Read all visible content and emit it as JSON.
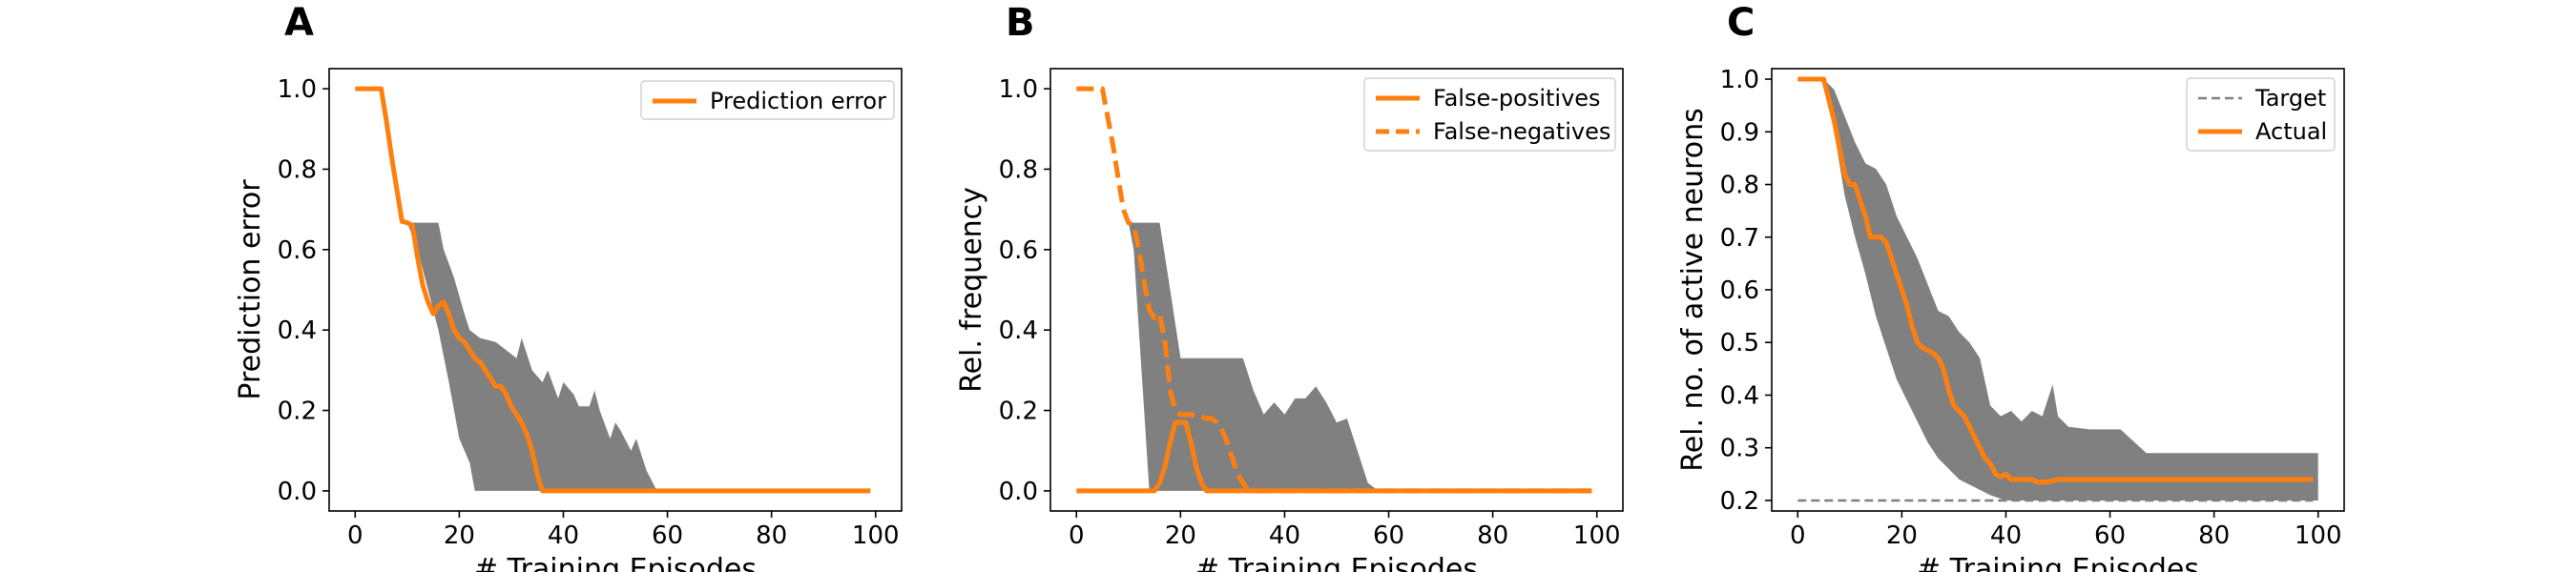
{
  "chart_data": [
    {
      "type": "line",
      "panel": "A",
      "xlabel": "# Training Episodes",
      "ylabel": "Prediction error",
      "xlim": [
        -5,
        105
      ],
      "ylim": [
        -0.05,
        1.05
      ],
      "xticks": [
        0,
        20,
        40,
        60,
        80,
        100
      ],
      "yticks": [
        0.0,
        0.2,
        0.4,
        0.6,
        0.8,
        1.0
      ],
      "yticklabels": [
        "0.0",
        "0.2",
        "0.4",
        "0.6",
        "0.8",
        "1.0"
      ],
      "legend_position": "top-right",
      "band_color": "#808080",
      "band": {
        "upper": [
          [
            0,
            1.0
          ],
          [
            5,
            1.0
          ],
          [
            10,
            0.667
          ],
          [
            13,
            0.667
          ],
          [
            16,
            0.667
          ],
          [
            17,
            0.6
          ],
          [
            19,
            0.53
          ],
          [
            21,
            0.44
          ],
          [
            22,
            0.4
          ],
          [
            24,
            0.38
          ],
          [
            27,
            0.37
          ],
          [
            29,
            0.35
          ],
          [
            31,
            0.33
          ],
          [
            32,
            0.38
          ],
          [
            34,
            0.3
          ],
          [
            36,
            0.27
          ],
          [
            37,
            0.3
          ],
          [
            39,
            0.23
          ],
          [
            40,
            0.27
          ],
          [
            42,
            0.24
          ],
          [
            43,
            0.21
          ],
          [
            45,
            0.21
          ],
          [
            46,
            0.25
          ],
          [
            47,
            0.2
          ],
          [
            49,
            0.13
          ],
          [
            50,
            0.17
          ],
          [
            51,
            0.15
          ],
          [
            53,
            0.1
          ],
          [
            54,
            0.13
          ],
          [
            56,
            0.05
          ],
          [
            58,
            0.0
          ],
          [
            100,
            0.0
          ]
        ],
        "lower": [
          [
            0,
            1.0
          ],
          [
            5,
            1.0
          ],
          [
            10,
            0.667
          ],
          [
            12,
            0.6
          ],
          [
            14,
            0.5
          ],
          [
            16,
            0.4
          ],
          [
            18,
            0.27
          ],
          [
            20,
            0.13
          ],
          [
            22,
            0.07
          ],
          [
            23,
            0.0
          ],
          [
            100,
            0.0
          ]
        ]
      },
      "series": [
        {
          "name": "Prediction error",
          "color": "#ff7f0e",
          "style": "solid",
          "points": [
            [
              0,
              1.0
            ],
            [
              5,
              1.0
            ],
            [
              6,
              0.92
            ],
            [
              7,
              0.83
            ],
            [
              8,
              0.75
            ],
            [
              9,
              0.67
            ],
            [
              10,
              0.667
            ],
            [
              11,
              0.66
            ],
            [
              12,
              0.58
            ],
            [
              13,
              0.51
            ],
            [
              14,
              0.47
            ],
            [
              15,
              0.44
            ],
            [
              16,
              0.46
            ],
            [
              17,
              0.47
            ],
            [
              18,
              0.44
            ],
            [
              19,
              0.4
            ],
            [
              20,
              0.38
            ],
            [
              21,
              0.37
            ],
            [
              22,
              0.35
            ],
            [
              23,
              0.33
            ],
            [
              24,
              0.32
            ],
            [
              25,
              0.3
            ],
            [
              26,
              0.28
            ],
            [
              27,
              0.26
            ],
            [
              28,
              0.26
            ],
            [
              29,
              0.24
            ],
            [
              30,
              0.21
            ],
            [
              31,
              0.19
            ],
            [
              32,
              0.17
            ],
            [
              33,
              0.14
            ],
            [
              34,
              0.1
            ],
            [
              35,
              0.04
            ],
            [
              36,
              0.0
            ],
            [
              99,
              0.0
            ]
          ]
        }
      ]
    },
    {
      "type": "line",
      "panel": "B",
      "xlabel": "# Training Episodes",
      "ylabel": "Rel. frequency",
      "xlim": [
        -5,
        105
      ],
      "ylim": [
        -0.05,
        1.05
      ],
      "xticks": [
        0,
        20,
        40,
        60,
        80,
        100
      ],
      "yticks": [
        0.0,
        0.2,
        0.4,
        0.6,
        0.8,
        1.0
      ],
      "yticklabels": [
        "0.0",
        "0.2",
        "0.4",
        "0.6",
        "0.8",
        "1.0"
      ],
      "legend_position": "top-right",
      "band_color": "#808080",
      "band": {
        "upper": [
          [
            0,
            0.0
          ],
          [
            9,
            0.0
          ],
          [
            10,
            0.667
          ],
          [
            12,
            0.667
          ],
          [
            16,
            0.667
          ],
          [
            18,
            0.5
          ],
          [
            20,
            0.33
          ],
          [
            24,
            0.33
          ],
          [
            32,
            0.33
          ],
          [
            34,
            0.25
          ],
          [
            36,
            0.19
          ],
          [
            38,
            0.22
          ],
          [
            40,
            0.19
          ],
          [
            42,
            0.23
          ],
          [
            44,
            0.23
          ],
          [
            46,
            0.26
          ],
          [
            48,
            0.22
          ],
          [
            50,
            0.17
          ],
          [
            52,
            0.18
          ],
          [
            54,
            0.1
          ],
          [
            56,
            0.02
          ],
          [
            58,
            0.0
          ],
          [
            100,
            0.0
          ]
        ],
        "lower": [
          [
            0,
            0.0
          ],
          [
            9,
            0.0
          ],
          [
            10,
            0.667
          ],
          [
            11,
            0.6
          ],
          [
            12,
            0.4
          ],
          [
            13,
            0.2
          ],
          [
            14,
            0.0
          ],
          [
            100,
            0.0
          ]
        ]
      },
      "series": [
        {
          "name": "False-positives",
          "color": "#ff7f0e",
          "style": "solid",
          "points": [
            [
              0,
              0.0
            ],
            [
              15,
              0.0
            ],
            [
              16,
              0.02
            ],
            [
              17,
              0.06
            ],
            [
              18,
              0.12
            ],
            [
              19,
              0.17
            ],
            [
              20,
              0.17
            ],
            [
              21,
              0.17
            ],
            [
              22,
              0.12
            ],
            [
              23,
              0.06
            ],
            [
              24,
              0.02
            ],
            [
              25,
              0.0
            ],
            [
              99,
              0.0
            ]
          ]
        },
        {
          "name": "False-negatives",
          "color": "#ff7f0e",
          "style": "dashed",
          "points": [
            [
              0,
              1.0
            ],
            [
              5,
              1.0
            ],
            [
              6,
              0.93
            ],
            [
              7,
              0.86
            ],
            [
              8,
              0.78
            ],
            [
              9,
              0.7
            ],
            [
              10,
              0.667
            ],
            [
              11,
              0.66
            ],
            [
              12,
              0.6
            ],
            [
              13,
              0.52
            ],
            [
              14,
              0.45
            ],
            [
              15,
              0.43
            ],
            [
              16,
              0.44
            ],
            [
              17,
              0.37
            ],
            [
              18,
              0.25
            ],
            [
              19,
              0.2
            ],
            [
              20,
              0.19
            ],
            [
              21,
              0.19
            ],
            [
              22,
              0.19
            ],
            [
              23,
              0.185
            ],
            [
              24,
              0.185
            ],
            [
              25,
              0.18
            ],
            [
              26,
              0.18
            ],
            [
              27,
              0.17
            ],
            [
              28,
              0.15
            ],
            [
              29,
              0.12
            ],
            [
              30,
              0.08
            ],
            [
              31,
              0.04
            ],
            [
              32,
              0.02
            ],
            [
              33,
              0.0
            ],
            [
              99,
              0.0
            ]
          ]
        }
      ]
    },
    {
      "type": "line",
      "panel": "C",
      "xlabel": "# Training Episodes",
      "ylabel": "Rel. no. of active neurons",
      "xlim": [
        -5,
        105
      ],
      "ylim": [
        0.18,
        1.02
      ],
      "xticks": [
        0,
        20,
        40,
        60,
        80,
        100
      ],
      "yticks": [
        0.2,
        0.3,
        0.4,
        0.5,
        0.6,
        0.7,
        0.8,
        0.9,
        1.0
      ],
      "yticklabels": [
        "0.2",
        "0.3",
        "0.4",
        "0.5",
        "0.6",
        "0.7",
        "0.8",
        "0.9",
        "1.0"
      ],
      "legend_position": "top-right",
      "band_color": "#808080",
      "band": {
        "upper": [
          [
            0,
            1.0
          ],
          [
            5,
            1.0
          ],
          [
            7,
            0.98
          ],
          [
            9,
            0.93
          ],
          [
            11,
            0.88
          ],
          [
            13,
            0.84
          ],
          [
            15,
            0.83
          ],
          [
            17,
            0.8
          ],
          [
            19,
            0.74
          ],
          [
            21,
            0.7
          ],
          [
            23,
            0.66
          ],
          [
            25,
            0.61
          ],
          [
            27,
            0.56
          ],
          [
            29,
            0.55
          ],
          [
            31,
            0.52
          ],
          [
            33,
            0.5
          ],
          [
            35,
            0.47
          ],
          [
            37,
            0.38
          ],
          [
            39,
            0.36
          ],
          [
            41,
            0.37
          ],
          [
            43,
            0.35
          ],
          [
            45,
            0.37
          ],
          [
            47,
            0.36
          ],
          [
            49,
            0.42
          ],
          [
            50,
            0.36
          ],
          [
            52,
            0.34
          ],
          [
            56,
            0.335
          ],
          [
            62,
            0.335
          ],
          [
            67,
            0.29
          ],
          [
            100,
            0.29
          ]
        ],
        "lower": [
          [
            0,
            1.0
          ],
          [
            5,
            1.0
          ],
          [
            7,
            0.9
          ],
          [
            9,
            0.78
          ],
          [
            11,
            0.7
          ],
          [
            13,
            0.63
          ],
          [
            15,
            0.55
          ],
          [
            17,
            0.49
          ],
          [
            19,
            0.43
          ],
          [
            21,
            0.39
          ],
          [
            23,
            0.35
          ],
          [
            25,
            0.31
          ],
          [
            27,
            0.28
          ],
          [
            29,
            0.26
          ],
          [
            31,
            0.24
          ],
          [
            33,
            0.23
          ],
          [
            35,
            0.22
          ],
          [
            37,
            0.21
          ],
          [
            40,
            0.2
          ],
          [
            100,
            0.2
          ]
        ]
      },
      "series": [
        {
          "name": "Target",
          "color": "#808080",
          "style": "dashed",
          "points": [
            [
              0,
              0.2
            ],
            [
              99,
              0.2
            ]
          ]
        },
        {
          "name": "Actual",
          "color": "#ff7f0e",
          "style": "solid",
          "points": [
            [
              0,
              1.0
            ],
            [
              5,
              1.0
            ],
            [
              6,
              0.96
            ],
            [
              7,
              0.92
            ],
            [
              8,
              0.87
            ],
            [
              9,
              0.82
            ],
            [
              10,
              0.8
            ],
            [
              11,
              0.8
            ],
            [
              12,
              0.77
            ],
            [
              13,
              0.74
            ],
            [
              14,
              0.7
            ],
            [
              15,
              0.7
            ],
            [
              16,
              0.7
            ],
            [
              17,
              0.69
            ],
            [
              18,
              0.66
            ],
            [
              19,
              0.63
            ],
            [
              20,
              0.6
            ],
            [
              21,
              0.57
            ],
            [
              22,
              0.53
            ],
            [
              23,
              0.5
            ],
            [
              24,
              0.49
            ],
            [
              25,
              0.485
            ],
            [
              26,
              0.48
            ],
            [
              27,
              0.47
            ],
            [
              28,
              0.45
            ],
            [
              29,
              0.41
            ],
            [
              30,
              0.38
            ],
            [
              31,
              0.37
            ],
            [
              32,
              0.36
            ],
            [
              33,
              0.34
            ],
            [
              34,
              0.32
            ],
            [
              35,
              0.3
            ],
            [
              36,
              0.28
            ],
            [
              37,
              0.27
            ],
            [
              38,
              0.25
            ],
            [
              39,
              0.245
            ],
            [
              40,
              0.25
            ],
            [
              41,
              0.24
            ],
            [
              42,
              0.24
            ],
            [
              44,
              0.24
            ],
            [
              45,
              0.24
            ],
            [
              46,
              0.235
            ],
            [
              48,
              0.235
            ],
            [
              50,
              0.24
            ],
            [
              52,
              0.24
            ],
            [
              99,
              0.24
            ]
          ]
        }
      ]
    }
  ]
}
